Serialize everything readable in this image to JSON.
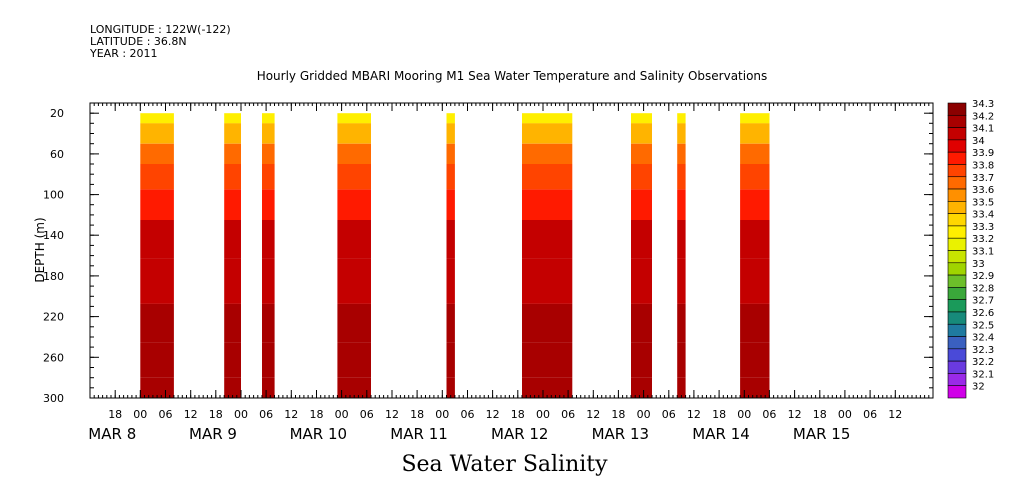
{
  "header": {
    "longitude": "LONGITUDE : 122W(-122)",
    "latitude": "LATITUDE : 36.8N",
    "year": "YEAR : 2011"
  },
  "chart_data": {
    "type": "heatmap",
    "title": "Hourly Gridded MBARI Mooring M1 Sea Water Temperature and Salinity Observations",
    "xlabel": "Sea Water Salinity",
    "ylabel": "DEPTH (m)",
    "ylim": [
      300,
      10
    ],
    "y_ticks": [
      20,
      60,
      100,
      140,
      180,
      220,
      260,
      300
    ],
    "x_start": "2011-03-07 12:00",
    "x_end": "2011-03-15 21:00",
    "x_hour_ticks": [
      "18",
      "00",
      "06",
      "12",
      "18",
      "00",
      "06",
      "12",
      "18",
      "00",
      "06",
      "12",
      "18",
      "00",
      "06",
      "12",
      "18",
      "00",
      "06",
      "12",
      "18",
      "00",
      "06",
      "12",
      "18",
      "00",
      "06",
      "12",
      "18",
      "00",
      "06",
      "12"
    ],
    "x_day_labels": [
      "MAR  8",
      "MAR  9",
      "MAR 10",
      "MAR 11",
      "MAR 12",
      "MAR 13",
      "MAR 14",
      "MAR 15"
    ],
    "colorbar_levels": [
      "34.3",
      "34.2",
      "34.1",
      "34",
      "33.9",
      "33.8",
      "33.7",
      "33.6",
      "33.5",
      "33.4",
      "33.3",
      "33.2",
      "33.1",
      "33",
      "32.9",
      "32.8",
      "32.7",
      "32.6",
      "32.5",
      "32.4",
      "32.3",
      "32.2",
      "32.1",
      "32"
    ],
    "colorbar_colors": [
      "#8b0000",
      "#a80000",
      "#c40000",
      "#e00000",
      "#ff1a00",
      "#ff4400",
      "#ff6a00",
      "#ff9000",
      "#ffb400",
      "#ffd700",
      "#ffef00",
      "#eaf200",
      "#c8e400",
      "#a0d400",
      "#6cbf2a",
      "#3aa83a",
      "#1a9a5a",
      "#178a7a",
      "#1f7aa0",
      "#3a60c0",
      "#4a4ad8",
      "#6a3ae0",
      "#9a2ae8",
      "#d000e8"
    ],
    "profile": [
      {
        "depth": 20,
        "value": 33.3
      },
      {
        "depth": 40,
        "value": 33.5
      },
      {
        "depth": 60,
        "value": 33.7
      },
      {
        "depth": 80,
        "value": 33.85
      },
      {
        "depth": 110,
        "value": 33.95
      },
      {
        "depth": 140,
        "value": 34.1
      },
      {
        "depth": 185,
        "value": 34.15
      },
      {
        "depth": 230,
        "value": 34.2
      },
      {
        "depth": 260,
        "value": 34.28
      },
      {
        "depth": 300,
        "value": 34.22
      }
    ],
    "data_segments": [
      {
        "start": "2011-03-08 00:00",
        "end": "2011-03-08 08:00"
      },
      {
        "start": "2011-03-08 20:00",
        "end": "2011-03-09 00:00"
      },
      {
        "start": "2011-03-09 05:00",
        "end": "2011-03-09 08:00"
      },
      {
        "start": "2011-03-09 23:00",
        "end": "2011-03-10 07:00"
      },
      {
        "start": "2011-03-11 01:00",
        "end": "2011-03-11 03:00"
      },
      {
        "start": "2011-03-11 19:00",
        "end": "2011-03-12 07:00"
      },
      {
        "start": "2011-03-12 21:00",
        "end": "2011-03-13 02:00"
      },
      {
        "start": "2011-03-13 08:00",
        "end": "2011-03-13 10:00"
      },
      {
        "start": "2011-03-13 23:00",
        "end": "2011-03-14 06:00"
      }
    ]
  }
}
